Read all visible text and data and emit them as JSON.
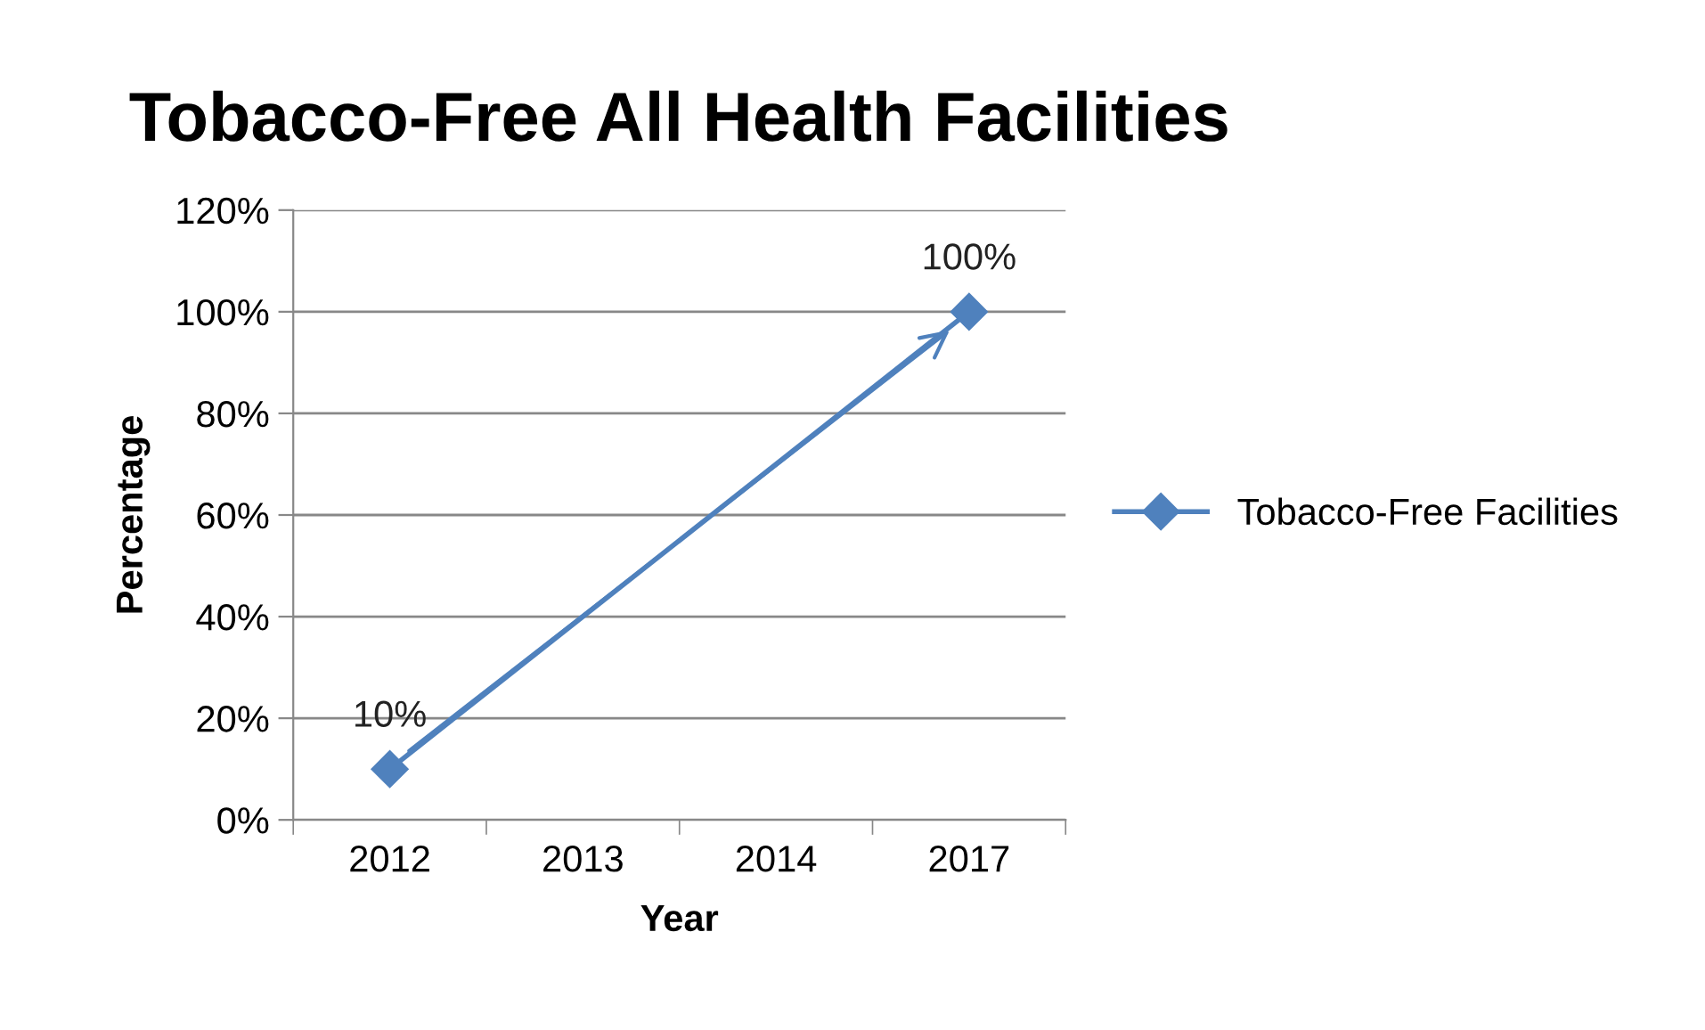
{
  "chart_data": {
    "type": "line",
    "title": "Tobacco-Free All Health Facilities",
    "xlabel": "Year",
    "ylabel": "Percentage",
    "categories": [
      "2012",
      "2013",
      "2014",
      "2017"
    ],
    "series": [
      {
        "name": "Tobacco-Free Facilities",
        "color": "#4f81bd",
        "values": [
          10,
          null,
          null,
          100
        ],
        "value_labels": [
          "10%",
          null,
          null,
          "100%"
        ]
      }
    ],
    "ylim": [
      0,
      120
    ],
    "yticks": [
      {
        "value": 0,
        "label": "0%"
      },
      {
        "value": 20,
        "label": "20%"
      },
      {
        "value": 40,
        "label": "40%"
      },
      {
        "value": 60,
        "label": "60%"
      },
      {
        "value": 80,
        "label": "80%"
      },
      {
        "value": 100,
        "label": "100%"
      },
      {
        "value": 120,
        "label": "120%"
      }
    ],
    "grid": "y",
    "legend": "right",
    "marker": "diamond",
    "line_style": "solid"
  }
}
